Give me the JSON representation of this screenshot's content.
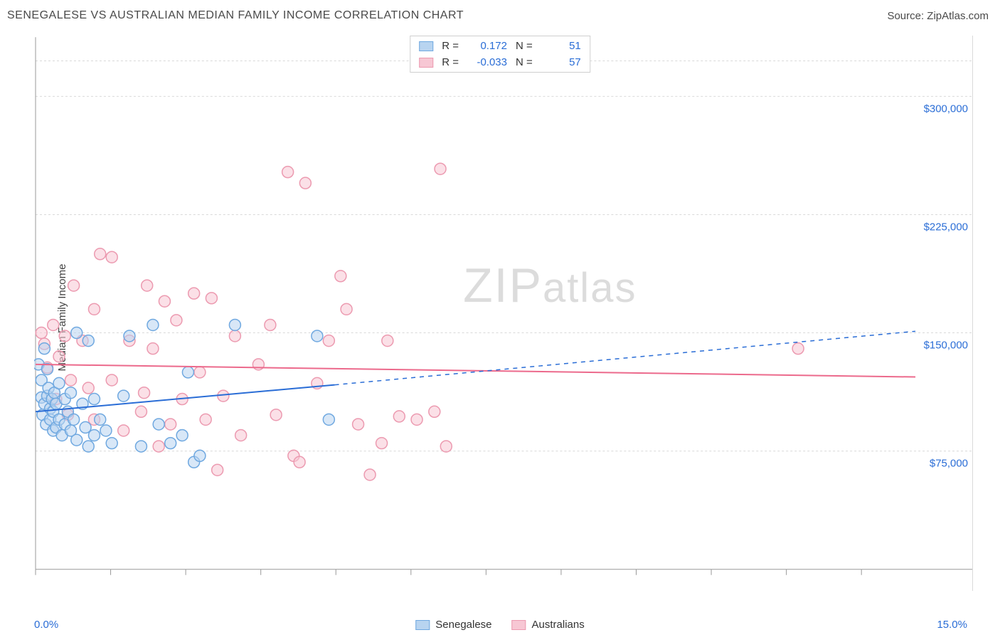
{
  "header": {
    "title": "SENEGALESE VS AUSTRALIAN MEDIAN FAMILY INCOME CORRELATION CHART",
    "source": "Source: ZipAtlas.com"
  },
  "watermark": {
    "text_a": "ZIP",
    "text_b": "atlas"
  },
  "chart": {
    "type": "scatter",
    "ylabel": "Median Family Income",
    "background_color": "#ffffff",
    "grid_color": "#d9d9d9",
    "axis_label_color": "#2a6dd6",
    "text_color": "#4a4a4a",
    "xlim": [
      0,
      15
    ],
    "ylim": [
      0,
      337500
    ],
    "x_ticks_positions": [
      0,
      1.28,
      2.56,
      3.84,
      5.12,
      6.4,
      7.68,
      8.96,
      10.24,
      11.52,
      12.8,
      14.08
    ],
    "x_endpoint_labels": [
      "0.0%",
      "15.0%"
    ],
    "y_gridlines": [
      75000,
      150000,
      225000,
      300000
    ],
    "y_gridline_labels": [
      "$75,000",
      "$150,000",
      "$225,000",
      "$300,000"
    ],
    "y_top_dashed": 322500,
    "marker_radius": 8,
    "marker_stroke_width": 1.5,
    "series": [
      {
        "name": "Senegalese",
        "fill": "#b8d4f0",
        "stroke": "#6fa8e0",
        "fill_opacity": 0.55,
        "r_value": "0.172",
        "n_value": "51",
        "trend": {
          "solid_from": [
            0,
            100000
          ],
          "solid_to": [
            5.1,
            117000
          ],
          "dashed_to": [
            15,
            151000
          ],
          "color": "#2a6dd6",
          "width": 2
        },
        "points": [
          [
            0.05,
            130000
          ],
          [
            0.1,
            109000
          ],
          [
            0.1,
            120000
          ],
          [
            0.12,
            98000
          ],
          [
            0.15,
            105000
          ],
          [
            0.15,
            140000
          ],
          [
            0.18,
            92000
          ],
          [
            0.2,
            110000
          ],
          [
            0.2,
            127000
          ],
          [
            0.22,
            115000
          ],
          [
            0.25,
            102000
          ],
          [
            0.25,
            95000
          ],
          [
            0.28,
            108000
          ],
          [
            0.3,
            88000
          ],
          [
            0.3,
            100000
          ],
          [
            0.32,
            112000
          ],
          [
            0.35,
            90000
          ],
          [
            0.35,
            105000
          ],
          [
            0.4,
            118000
          ],
          [
            0.4,
            95000
          ],
          [
            0.45,
            85000
          ],
          [
            0.5,
            108000
          ],
          [
            0.5,
            92000
          ],
          [
            0.55,
            100000
          ],
          [
            0.6,
            112000
          ],
          [
            0.6,
            88000
          ],
          [
            0.65,
            95000
          ],
          [
            0.7,
            150000
          ],
          [
            0.7,
            82000
          ],
          [
            0.8,
            105000
          ],
          [
            0.85,
            90000
          ],
          [
            0.9,
            78000
          ],
          [
            0.9,
            145000
          ],
          [
            1.0,
            108000
          ],
          [
            1.0,
            85000
          ],
          [
            1.1,
            95000
          ],
          [
            1.2,
            88000
          ],
          [
            1.3,
            80000
          ],
          [
            1.5,
            110000
          ],
          [
            1.6,
            148000
          ],
          [
            1.8,
            78000
          ],
          [
            2.0,
            155000
          ],
          [
            2.1,
            92000
          ],
          [
            2.3,
            80000
          ],
          [
            2.5,
            85000
          ],
          [
            2.6,
            125000
          ],
          [
            2.7,
            68000
          ],
          [
            2.8,
            72000
          ],
          [
            3.4,
            155000
          ],
          [
            4.8,
            148000
          ],
          [
            5.0,
            95000
          ]
        ]
      },
      {
        "name": "Australians",
        "fill": "#f7c7d4",
        "stroke": "#ec9ab0",
        "fill_opacity": 0.55,
        "r_value": "-0.033",
        "n_value": "57",
        "trend": {
          "solid_from": [
            0,
            130000
          ],
          "solid_to": [
            15,
            122000
          ],
          "dashed_to": null,
          "color": "#ec6a8c",
          "width": 2
        },
        "points": [
          [
            0.1,
            150000
          ],
          [
            0.15,
            143000
          ],
          [
            0.2,
            128000
          ],
          [
            0.3,
            155000
          ],
          [
            0.35,
            108000
          ],
          [
            0.4,
            135000
          ],
          [
            0.5,
            148000
          ],
          [
            0.55,
            98000
          ],
          [
            0.6,
            120000
          ],
          [
            0.65,
            180000
          ],
          [
            0.8,
            145000
          ],
          [
            0.9,
            115000
          ],
          [
            1.0,
            165000
          ],
          [
            1.0,
            95000
          ],
          [
            1.1,
            200000
          ],
          [
            1.3,
            120000
          ],
          [
            1.3,
            198000
          ],
          [
            1.5,
            88000
          ],
          [
            1.6,
            145000
          ],
          [
            1.8,
            100000
          ],
          [
            1.85,
            112000
          ],
          [
            1.9,
            180000
          ],
          [
            2.0,
            140000
          ],
          [
            2.2,
            170000
          ],
          [
            2.3,
            92000
          ],
          [
            2.4,
            158000
          ],
          [
            2.5,
            108000
          ],
          [
            2.7,
            175000
          ],
          [
            2.8,
            125000
          ],
          [
            2.9,
            95000
          ],
          [
            3.0,
            172000
          ],
          [
            3.2,
            110000
          ],
          [
            3.4,
            148000
          ],
          [
            3.5,
            85000
          ],
          [
            3.8,
            130000
          ],
          [
            4.0,
            155000
          ],
          [
            4.1,
            98000
          ],
          [
            4.3,
            252000
          ],
          [
            4.4,
            72000
          ],
          [
            4.6,
            245000
          ],
          [
            4.8,
            118000
          ],
          [
            5.0,
            145000
          ],
          [
            5.2,
            186000
          ],
          [
            5.3,
            165000
          ],
          [
            5.5,
            92000
          ],
          [
            5.7,
            60000
          ],
          [
            5.9,
            80000
          ],
          [
            6.0,
            145000
          ],
          [
            6.2,
            97000
          ],
          [
            6.5,
            95000
          ],
          [
            6.8,
            100000
          ],
          [
            6.9,
            254000
          ],
          [
            7.0,
            78000
          ],
          [
            13.0,
            140000
          ],
          [
            3.1,
            63000
          ],
          [
            4.5,
            68000
          ],
          [
            2.1,
            78000
          ]
        ]
      }
    ],
    "legend_bottom": [
      "Senegalese",
      "Australians"
    ],
    "legend_top_labels": {
      "r": "R =",
      "n": "N ="
    }
  }
}
